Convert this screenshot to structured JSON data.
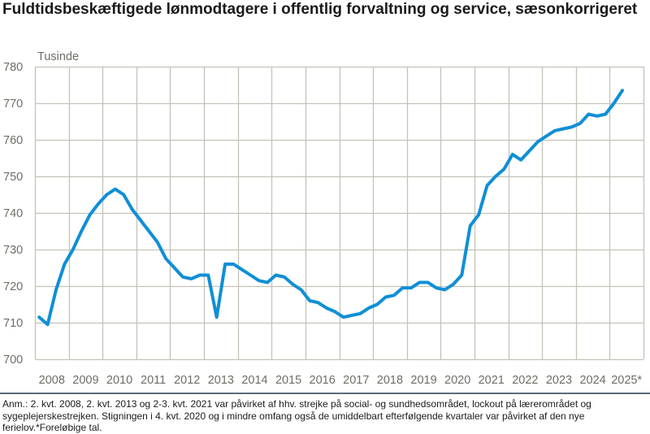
{
  "title": "Fuldtidsbeskæftigede lønmodtagere i offentlig forvaltning og service, sæsonkorrigeret",
  "footnote": "Anm.: 2. kvt. 2008, 2. kvt. 2013 og 2-3. kvt. 2021 var påvirket af hhv. strejke på social- og sundhedsområdet, lockout på lærerområdet og sygeplejerskestrejken. Stigningen i 4. kvt. 2020 og i mindre omfang også de umiddelbart efterfølgende kvartaler var påvirket af den nye ferielov.*Foreløbige tal.",
  "colors": {
    "line": "#0f8fd6",
    "grid": "#c4c2b8",
    "tick_text": "#6e6e66",
    "divider": "#5b6a78"
  },
  "chart_data": {
    "type": "line",
    "title": "Fuldtidsbeskæftigede lønmodtagere i offentlig forvaltning og service, sæsonkorrigeret",
    "ylabel": "Tusinde",
    "xlabel": "",
    "ylim": [
      700,
      780
    ],
    "yticks": [
      700,
      710,
      720,
      730,
      740,
      750,
      760,
      770,
      780
    ],
    "xlim": [
      2008,
      2026
    ],
    "xtick_labels": [
      "2008",
      "2009",
      "2010",
      "2011",
      "2012",
      "2013",
      "2014",
      "2015",
      "2016",
      "2017",
      "2018",
      "2019",
      "2020",
      "2021",
      "2022",
      "2023",
      "2024",
      "2025*"
    ],
    "grid": true,
    "legend": "none",
    "frequency": "quarterly",
    "start": "2008Q1",
    "series": [
      {
        "name": "Fuldtidsbeskæftigede lønmodtagere, offentlig forvaltning og service",
        "values": [
          711.5,
          709.5,
          719,
          726,
          730,
          735,
          739.5,
          742.5,
          745,
          746.5,
          745,
          741,
          738,
          735,
          732,
          727.5,
          725,
          722.5,
          722,
          723,
          723,
          711.5,
          726,
          726,
          724.5,
          723,
          721.5,
          721,
          723,
          722.5,
          720.5,
          719,
          716,
          715.5,
          714,
          713,
          711.5,
          712,
          712.5,
          714,
          715,
          717,
          717.5,
          719.5,
          719.5,
          721,
          721,
          719.5,
          719,
          720.5,
          723,
          736.5,
          739.5,
          747.5,
          750,
          752,
          756,
          754.5,
          757,
          759.5,
          761,
          762.5,
          763,
          763.5,
          764.5,
          767,
          766.5,
          767,
          770,
          773.5
        ]
      }
    ]
  }
}
